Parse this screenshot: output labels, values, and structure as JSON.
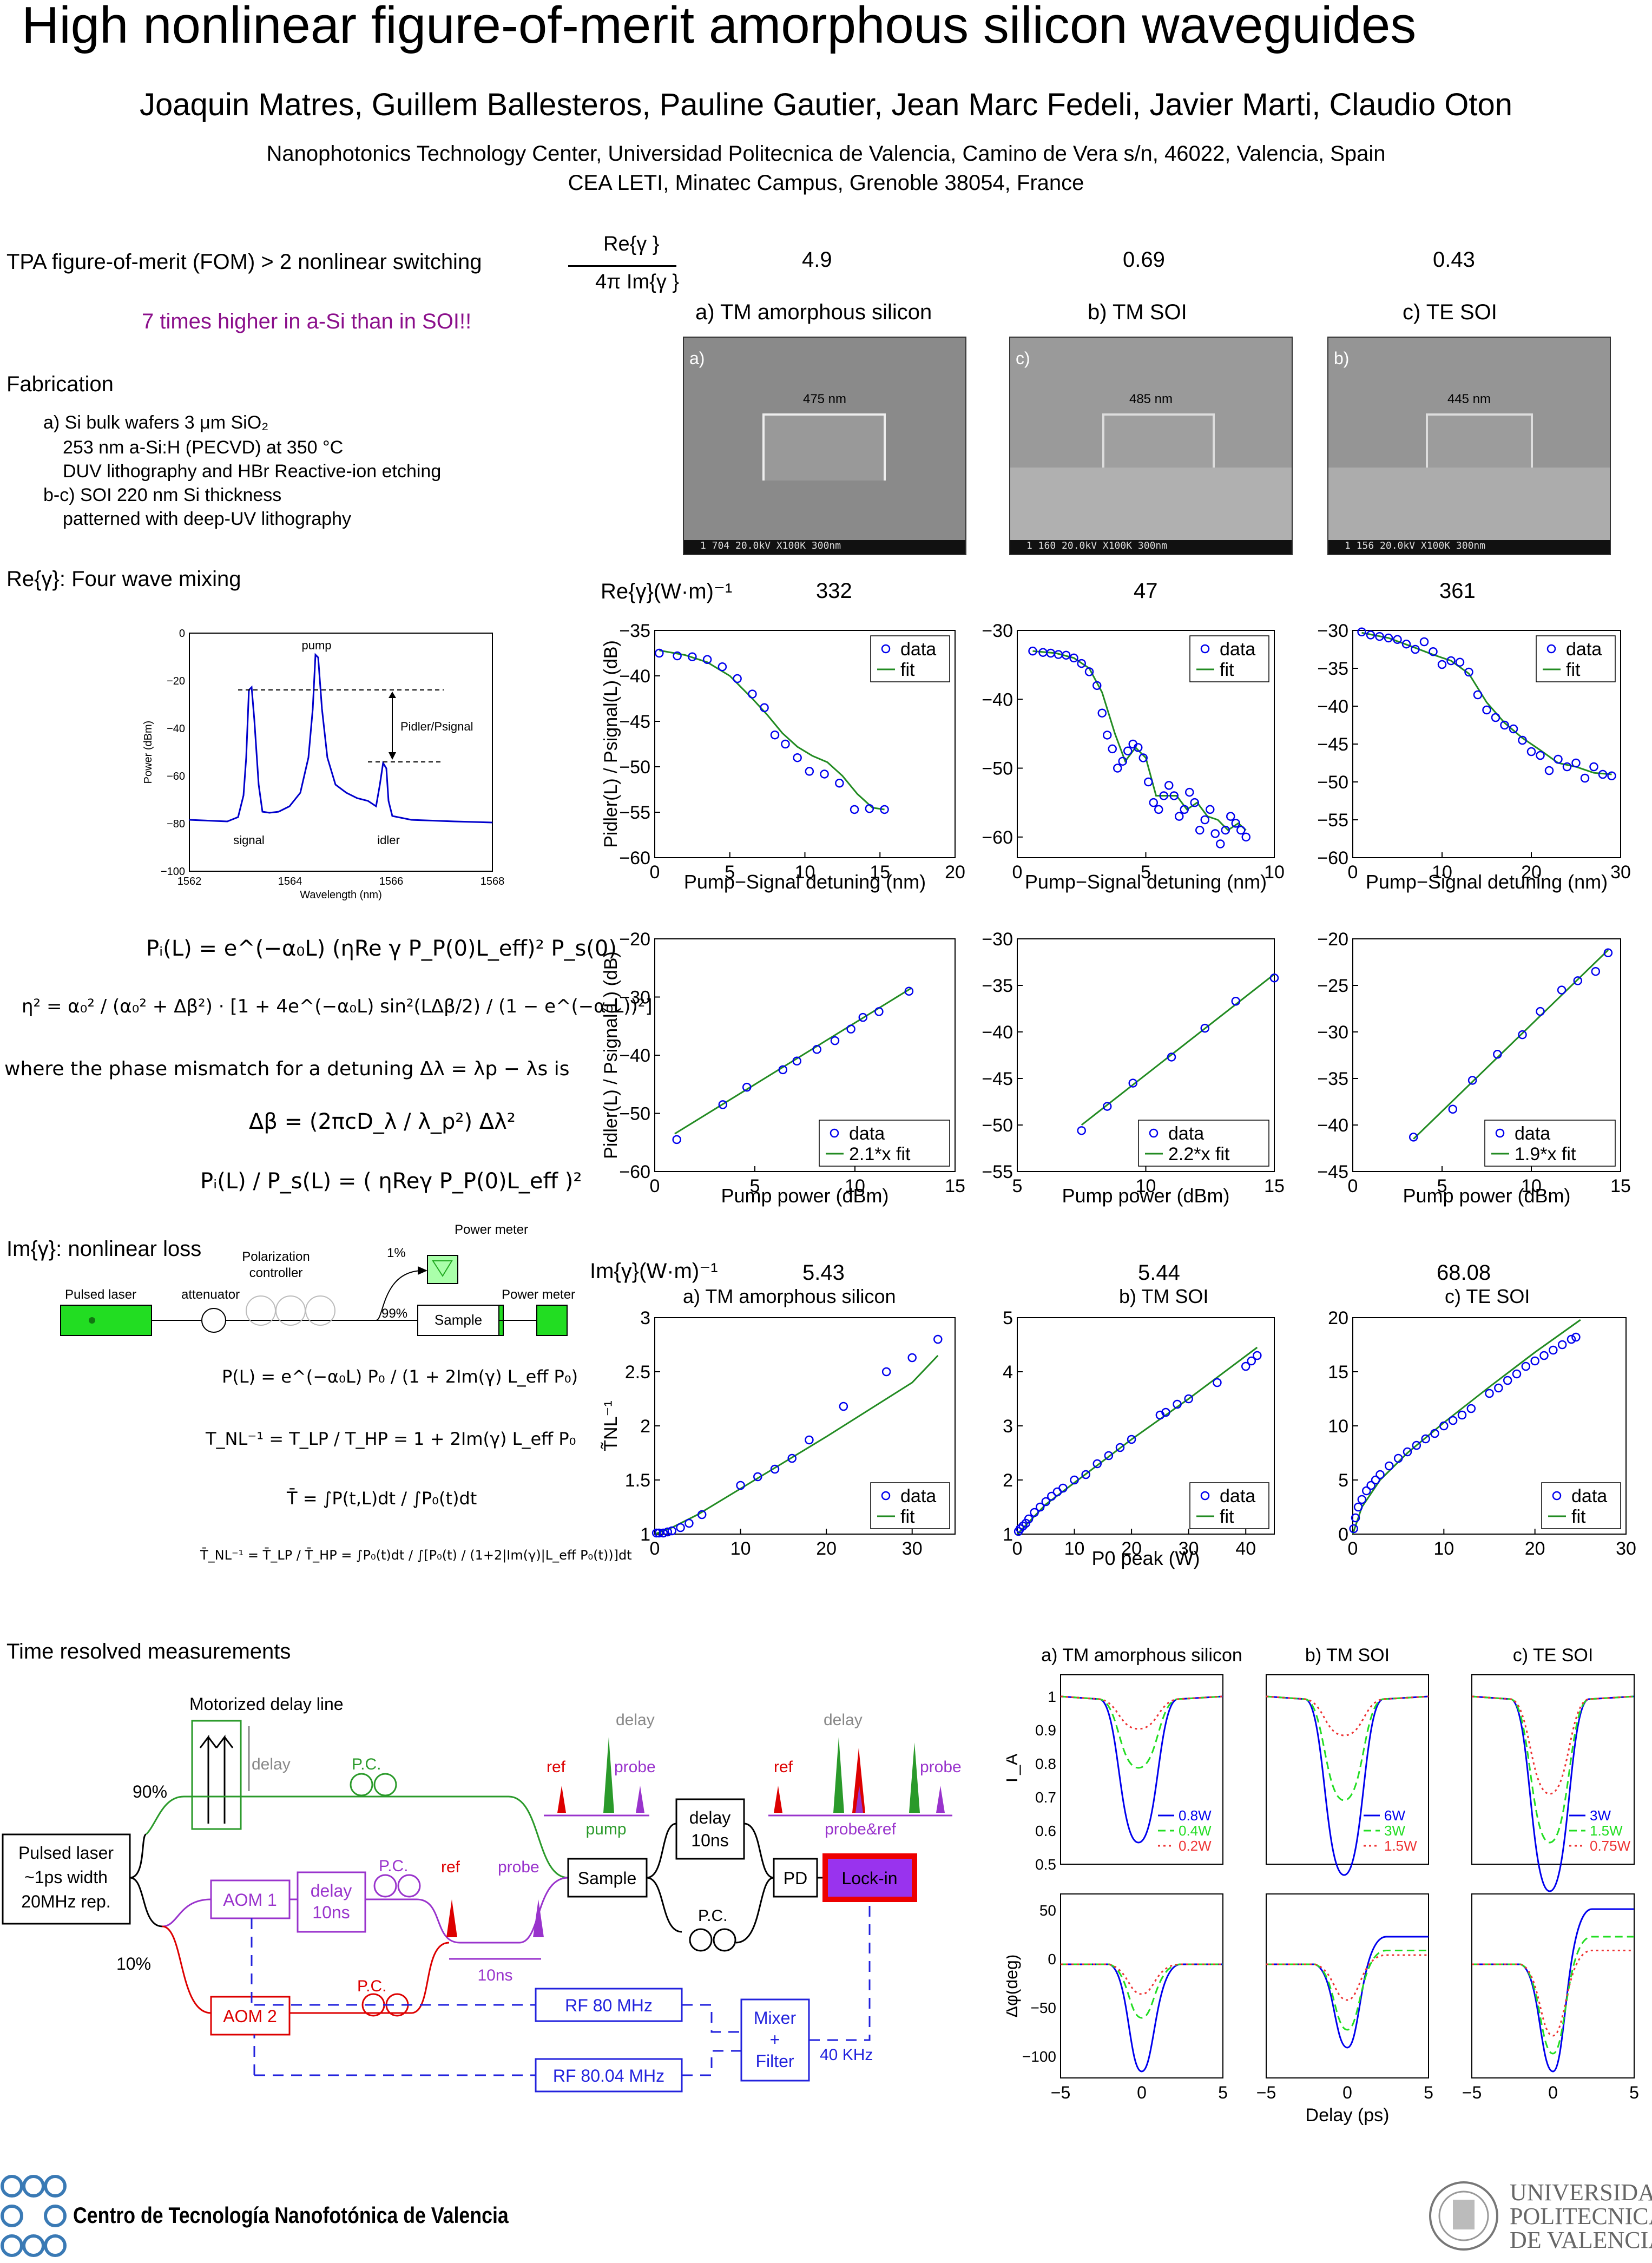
{
  "header": {
    "title": "High nonlinear figure-of-merit amorphous silicon waveguides",
    "authors": "Joaquin Matres, Guillem Ballesteros, Pauline Gautier, Jean Marc Fedeli, Javier Marti, Claudio Oton",
    "affiliation1": "Nanophotonics Technology Center, Universidad Politecnica de Valencia, Camino de Vera s/n, 46022, Valencia, Spain",
    "affiliation2": "CEA LETI, Minatec Campus, Grenoble 38054, France"
  },
  "left": {
    "fom_heading": "TPA figure-of-merit (FOM) > 2 nonlinear switching",
    "fom_highlight": "7 times higher in a-Si than in SOI!!",
    "fab_heading": "Fabrication",
    "fab_lines": [
      "a) Si bulk wafers 3 μm SiO₂",
      "253 nm a-Si:H (PECVD) at 350 °C",
      "DUV lithography and HBr Reactive-ion etching",
      "b-c) SOI 220 nm Si thickness",
      "patterned with deep-UV lithography"
    ],
    "fwm_heading": "Re{γ}: Four wave mixing",
    "eq_pi": "Pᵢ(L) = e^(−α₀L) (ηRe γ P_P(0)L_eff)² P_s(0)",
    "eq_eta": "η² = α₀² / (α₀² + Δβ²) · [1 + 4e^(−α₀L) sin²(LΔβ/2) / (1 − e^(−α₀L))²]",
    "eq_where": "where the phase mismatch for a detuning Δλ = λp − λs is",
    "eq_db": "Δβ = (2πcD_λ / λ_p²) Δλ²",
    "eq_ratio": "Pᵢ(L) / P_s(L) = ( ηReγ P_P(0)L_eff )²",
    "nl_heading": "Im{γ}: nonlinear loss",
    "eq_pl": "P(L) = e^(−α₀L) P₀ / (1 + 2Im(γ) L_eff P₀)",
    "eq_tnl": "T_NL⁻¹ = T_LP / T_HP = 1 + 2Im(γ) L_eff P₀",
    "eq_tbar": "T̄ = ∫P(t,L)dt / ∫P₀(t)dt",
    "eq_tbar2": "T̄_NL⁻¹ = T̄_LP / T̄_HP = ∫P₀(t)dt / ∫[P₀(t) / (1+2|Im(γ)|L_eff P₀(t))]dt",
    "setup": {
      "laser": "Pulsed laser",
      "attenuator": "attenuator",
      "polarization": "Polarization",
      "controller": "controller",
      "pm1": "Power meter",
      "pm2": "Power meter",
      "pct1": "1%",
      "pct99": "99%",
      "sample": "Sample"
    },
    "trm_heading": "Time resolved measurements"
  },
  "fwm_spectrum": {
    "ylabel": "Power (dBm)",
    "xlabel": "Wavelength (nm)",
    "xticks": [
      "1562",
      "1564",
      "1566",
      "1568"
    ],
    "yticks": [
      "0",
      "−20",
      "−40",
      "−60",
      "−80",
      "−100"
    ],
    "labels": {
      "pump": "pump",
      "signal": "signal",
      "idler": "idler",
      "ratio": "Pidler/Psignal"
    }
  },
  "top_table": {
    "ratio_num": "Re{γ }",
    "ratio_den": "4π Im{γ }",
    "fom_values": [
      "4.9",
      "0.69",
      "0.43"
    ],
    "columns": [
      "a) TM amorphous silicon",
      "b) TM SOI",
      "c) TE SOI"
    ]
  },
  "sem": [
    {
      "tag": "a)",
      "width": "475 nm",
      "bar": "1   704 20.0kV  X100K  300nm"
    },
    {
      "tag": "c)",
      "width": "485 nm",
      "bar": "1   160 20.0kV  X100K  300nm"
    },
    {
      "tag": "b)",
      "width": "445 nm",
      "bar": "1   156 20.0kV  X100K  300nm"
    }
  ],
  "re_gamma": {
    "label": "Re{γ}(W·m)⁻¹",
    "values": [
      "332",
      "47",
      "361"
    ]
  },
  "im_gamma": {
    "label": "Im{γ}(W·m)⁻¹",
    "values": [
      "5.43",
      "5.44",
      "68.08"
    ],
    "titles": [
      "a) TM amorphous  silicon",
      "b) TM SOI",
      "c) TE SOI"
    ]
  },
  "chart_data": [
    {
      "type": "scatter",
      "id": "det-a",
      "xlabel": "Pump−Signal detuning (nm)",
      "ylabel": "Pidler(L) / Psignal(L) (dB)",
      "xlim": [
        0,
        20
      ],
      "ylim": [
        -60,
        -35
      ],
      "xticks": [
        0,
        5,
        10,
        15,
        20
      ],
      "yticks": [
        -60,
        -55,
        -50,
        -45,
        -40,
        -35
      ],
      "legend": [
        "data",
        "fit"
      ],
      "x": [
        0.3,
        1.5,
        2.5,
        3.5,
        4.5,
        5.5,
        6.5,
        7.3,
        8,
        8.7,
        9.5,
        10.3,
        11.3,
        12.3,
        13.3,
        14.3,
        15.3
      ],
      "y": [
        -37.5,
        -37.8,
        -37.9,
        -38.2,
        -39,
        -40.3,
        -42,
        -43.5,
        -46.5,
        -47.5,
        -49,
        -50.5,
        -50.8,
        -51.8,
        -54.7,
        -54.6,
        -54.7
      ],
      "fitx": [
        0.3,
        2,
        3.5,
        5,
        6.5,
        7.5,
        8.5,
        9.5,
        10.5,
        11.5,
        12.5,
        13.5,
        14.5,
        15.3
      ],
      "fity": [
        -37.2,
        -37.7,
        -38.5,
        -40,
        -42.5,
        -44.3,
        -46.3,
        -47.8,
        -48.8,
        -49.5,
        -51,
        -53,
        -54.5,
        -54.7
      ]
    },
    {
      "type": "scatter",
      "id": "det-b",
      "xlabel": "Pump−Signal detuning (nm)",
      "ylabel": "",
      "xlim": [
        0,
        10
      ],
      "ylim": [
        -63,
        -30
      ],
      "xticks": [
        0,
        5,
        10
      ],
      "yticks": [
        -60,
        -50,
        -40,
        -30
      ],
      "legend": [
        "data",
        "fit"
      ],
      "x": [
        0.6,
        1,
        1.3,
        1.6,
        1.9,
        2.2,
        2.5,
        2.8,
        3.1,
        3.3,
        3.5,
        3.7,
        3.9,
        4.1,
        4.3,
        4.5,
        4.7,
        4.9,
        5.1,
        5.3,
        5.5,
        5.7,
        5.9,
        6.1,
        6.3,
        6.5,
        6.7,
        6.9,
        7.1,
        7.3,
        7.5,
        7.7,
        7.9,
        8.1,
        8.3,
        8.5,
        8.7,
        8.9
      ],
      "y": [
        -33,
        -33.2,
        -33.3,
        -33.5,
        -33.6,
        -34,
        -34.8,
        -36,
        -38,
        -42,
        -45.2,
        -47.2,
        -50,
        -49,
        -47.5,
        -46.5,
        -47,
        -48.5,
        -52,
        -55,
        -56,
        -54,
        -52.5,
        -54,
        -57,
        -56,
        -53.5,
        -55,
        -59,
        -57.5,
        -56,
        -59.5,
        -61,
        -59,
        -57,
        -58,
        -59,
        -60
      ],
      "fitx": [
        0.6,
        1.5,
        2.2,
        2.8,
        3.3,
        3.8,
        4.2,
        4.6,
        5,
        5.4,
        5.8,
        6.2,
        6.6,
        7,
        7.4,
        7.8,
        8.2,
        8.6,
        8.9
      ],
      "fity": [
        -33,
        -33.3,
        -34,
        -35.5,
        -39,
        -45,
        -49,
        -47,
        -48.5,
        -54,
        -54,
        -54,
        -56,
        -55,
        -57,
        -57.5,
        -59,
        -58,
        -59
      ]
    },
    {
      "type": "scatter",
      "id": "det-c",
      "xlabel": "Pump−Signal detuning (nm)",
      "ylabel": "",
      "xlim": [
        0,
        30
      ],
      "ylim": [
        -60,
        -30
      ],
      "xticks": [
        0,
        10,
        20,
        30
      ],
      "yticks": [
        -60,
        -55,
        -50,
        -45,
        -40,
        -35,
        -30
      ],
      "legend": [
        "data",
        "fit"
      ],
      "x": [
        1,
        2,
        3,
        4,
        5,
        6,
        7,
        8,
        9,
        10,
        11,
        12,
        13,
        14,
        15,
        16,
        17,
        18,
        19,
        20,
        21,
        22,
        23,
        24,
        25,
        26,
        27,
        28,
        29
      ],
      "y": [
        -30.2,
        -30.6,
        -30.8,
        -31,
        -31.2,
        -31.8,
        -32.5,
        -31.5,
        -32.8,
        -34.5,
        -34,
        -34.2,
        -35.5,
        -38.5,
        -40.5,
        -41.5,
        -42.5,
        -43,
        -44.5,
        -46,
        -46.5,
        -48.5,
        -47,
        -48,
        -47.5,
        -49.5,
        -48,
        -49,
        -49.2
      ],
      "fitx": [
        1,
        4,
        7,
        9,
        11,
        13,
        15,
        17,
        19,
        21,
        23,
        25,
        27,
        29
      ],
      "fity": [
        -30.3,
        -31,
        -32.3,
        -33.2,
        -34,
        -35.7,
        -39.5,
        -42.2,
        -44.2,
        -45.8,
        -47.5,
        -48,
        -48.8,
        -49
      ]
    },
    {
      "type": "scatter",
      "id": "pow-a",
      "xlabel": "Pump power (dBm)",
      "ylabel": "Pidler(L) / Psignal(L) (dB)",
      "xlim": [
        0,
        15
      ],
      "ylim": [
        -60,
        -20
      ],
      "xticks": [
        0,
        5,
        10,
        15
      ],
      "yticks": [
        -60,
        -50,
        -40,
        -30,
        -20
      ],
      "legend": [
        "data",
        "2.1*x fit"
      ],
      "x": [
        1.1,
        3.4,
        4.6,
        6.4,
        7.1,
        8.1,
        9,
        9.8,
        10.4,
        11.2,
        12.7
      ],
      "y": [
        -54.5,
        -48.5,
        -45.5,
        -42.5,
        -41,
        -39,
        -37.5,
        -35.5,
        -33.5,
        -32.5,
        -29
      ],
      "fitx": [
        1,
        12.8
      ],
      "fity": [
        -53.5,
        -28.5
      ]
    },
    {
      "type": "scatter",
      "id": "pow-b",
      "xlabel": "Pump power (dBm)",
      "ylabel": "",
      "xlim": [
        5,
        15
      ],
      "ylim": [
        -55,
        -30
      ],
      "xticks": [
        5,
        10,
        15
      ],
      "yticks": [
        -55,
        -50,
        -45,
        -40,
        -35,
        -30
      ],
      "legend": [
        "data",
        "2.2*x fit"
      ],
      "x": [
        7.5,
        8.5,
        9.5,
        11,
        12.3,
        13.5,
        15
      ],
      "y": [
        -50.6,
        -48,
        -45.5,
        -42.7,
        -39.6,
        -36.7,
        -34.2
      ],
      "fitx": [
        7.5,
        15
      ],
      "fity": [
        -50,
        -33.8
      ]
    },
    {
      "type": "scatter",
      "id": "pow-c",
      "xlabel": "Pump power (dBm)",
      "ylabel": "",
      "xlim": [
        0,
        15
      ],
      "ylim": [
        -45,
        -20
      ],
      "xticks": [
        0,
        5,
        10,
        15
      ],
      "yticks": [
        -45,
        -40,
        -35,
        -30,
        -25,
        -20
      ],
      "legend": [
        "data",
        "1.9*x fit"
      ],
      "x": [
        3.4,
        5.6,
        6.7,
        8.1,
        9.5,
        10.5,
        11.7,
        12.6,
        13.6,
        14.3
      ],
      "y": [
        -41.3,
        -38.3,
        -35.2,
        -32.4,
        -30.3,
        -27.8,
        -25.5,
        -24.5,
        -23.5,
        -21.5
      ],
      "fitx": [
        3.4,
        14.3
      ],
      "fity": [
        -41.5,
        -21.2
      ]
    },
    {
      "type": "scatter",
      "id": "nl-a",
      "xlabel": "",
      "ylabel": "T̃NL⁻¹",
      "xlim": [
        0,
        35
      ],
      "ylim": [
        1,
        3
      ],
      "xticks": [
        0,
        10,
        20,
        30
      ],
      "yticks": [
        1,
        1.5,
        2,
        2.5,
        3
      ],
      "legend": [
        "data",
        "fit"
      ],
      "x": [
        0.2,
        0.5,
        1,
        1.5,
        2,
        3,
        4,
        5.5,
        10,
        12,
        14,
        16,
        18,
        22,
        27,
        30,
        33
      ],
      "y": [
        1.01,
        1.01,
        1.01,
        1.02,
        1.03,
        1.06,
        1.1,
        1.18,
        1.45,
        1.53,
        1.6,
        1.7,
        1.87,
        2.18,
        2.5,
        2.63,
        2.8
      ],
      "fitx": [
        0,
        2,
        5,
        10,
        15,
        20,
        25,
        30,
        33
      ],
      "fity": [
        1,
        1.06,
        1.18,
        1.42,
        1.66,
        1.9,
        2.15,
        2.4,
        2.65
      ]
    },
    {
      "type": "scatter",
      "id": "nl-b",
      "xlabel": "P0 peak (W)",
      "ylabel": "",
      "xlim": [
        0,
        45
      ],
      "ylim": [
        1,
        5
      ],
      "xticks": [
        0,
        10,
        20,
        30,
        40
      ],
      "yticks": [
        1,
        2,
        3,
        4,
        5
      ],
      "legend": [
        "data",
        "fit"
      ],
      "x": [
        0.2,
        0.5,
        1,
        1.5,
        2,
        3,
        4,
        5,
        6,
        7,
        8,
        10,
        12,
        14,
        16,
        18,
        20,
        25,
        26,
        28,
        30,
        35,
        40,
        41,
        42
      ],
      "y": [
        1.05,
        1.1,
        1.15,
        1.2,
        1.28,
        1.4,
        1.5,
        1.6,
        1.7,
        1.78,
        1.85,
        2,
        2.1,
        2.3,
        2.45,
        2.6,
        2.75,
        3.2,
        3.25,
        3.4,
        3.5,
        3.8,
        4.1,
        4.2,
        4.3
      ],
      "fitx": [
        0,
        5,
        10,
        20,
        30,
        42
      ],
      "fity": [
        1,
        1.55,
        1.95,
        2.75,
        3.5,
        4.45
      ]
    },
    {
      "type": "scatter",
      "id": "nl-c",
      "xlabel": "",
      "ylabel": "",
      "xlim": [
        0,
        30
      ],
      "ylim": [
        0,
        20
      ],
      "xticks": [
        0,
        10,
        20,
        30
      ],
      "yticks": [
        0,
        5,
        10,
        15,
        20
      ],
      "legend": [
        "data",
        "fit"
      ],
      "x": [
        0.1,
        0.3,
        0.6,
        1,
        1.5,
        2,
        2.5,
        3,
        4,
        5,
        6,
        7,
        8,
        9,
        10,
        11,
        12,
        13,
        15,
        16,
        17,
        18,
        19,
        20,
        21,
        22,
        23,
        24,
        24.5
      ],
      "y": [
        0.5,
        1.5,
        2.5,
        3.2,
        4,
        4.5,
        5,
        5.5,
        6.3,
        7,
        7.6,
        8.2,
        8.8,
        9.3,
        10,
        10.5,
        11,
        11.6,
        13,
        13.5,
        14.2,
        14.8,
        15.5,
        16,
        16.5,
        17,
        17.5,
        18,
        18.2
      ],
      "fitx": [
        0,
        1,
        3,
        6,
        10,
        15,
        20,
        25
      ],
      "fity": [
        0,
        2.5,
        5,
        7.5,
        10.3,
        13.6,
        16.8,
        19.8
      ]
    }
  ],
  "trm": {
    "titles": [
      "a) TM amorphous silicon",
      "b) TM SOI",
      "c) TE SOI"
    ],
    "ylabel_top": "T_A",
    "ylabel_bottom": "Δφ(deg)",
    "xlabel": "Delay (ps)",
    "legends": [
      [
        "0.8W",
        "0.4W",
        "0.2W"
      ],
      [
        "6W",
        "3W",
        "1.5W"
      ],
      [
        "3W",
        "1.5W",
        "0.75W"
      ]
    ],
    "yticks_top": [
      "0.5",
      "0.6",
      "0.7",
      "0.8",
      "0.9",
      "1"
    ],
    "yticks_bottom": [
      "−100",
      "−50",
      "0",
      "50"
    ],
    "xticks": [
      "−5",
      "0",
      "5"
    ]
  },
  "trm_setup": {
    "mdl": "Motorized delay line",
    "delay": "delay",
    "pc": "P.C.",
    "p90": "90%",
    "p10": "10%",
    "laser": [
      "Pulsed laser",
      "~1ps width",
      "20MHz rep."
    ],
    "aom1": "AOM 1",
    "aom2": "AOM 2",
    "delay10": [
      "delay",
      "10ns"
    ],
    "ref": "ref",
    "probe": "probe",
    "ns10": "10ns",
    "pump": "pump",
    "probeandref": "probe&ref",
    "sample": "Sample",
    "pd": "PD",
    "lockin": "Lock-in",
    "rf80": "RF 80 MHz",
    "rf8004": "RF 80.04 MHz",
    "mixer": [
      "Mixer",
      "+",
      "Filter"
    ],
    "khz": "40 KHz"
  },
  "footer": {
    "ntc": "Centro de Tecnología Nanofotónica de Valencia",
    "upv": [
      "UNIVERSIDAD",
      "POLITECNICA",
      "DE VALENCIA"
    ]
  }
}
